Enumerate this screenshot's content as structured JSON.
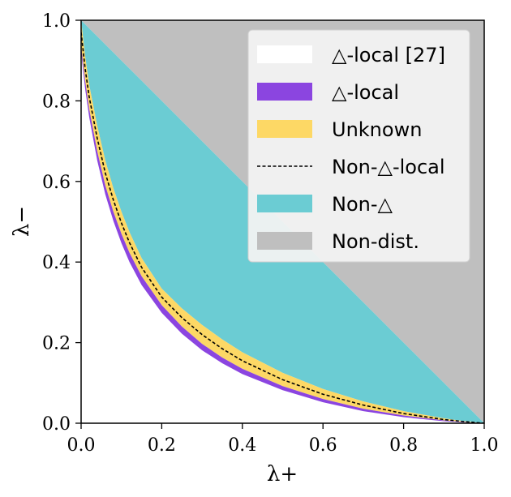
{
  "chart_data": {
    "type": "area",
    "xlabel": "λ+",
    "ylabel": "λ−",
    "xlim": [
      0.0,
      1.0
    ],
    "ylim": [
      0.0,
      1.0
    ],
    "xticks": [
      "0.0",
      "0.2",
      "0.4",
      "0.6",
      "0.8",
      "1.0"
    ],
    "yticks": [
      "0.0",
      "0.2",
      "0.4",
      "0.6",
      "0.8",
      "1.0"
    ],
    "grid": false,
    "legend_position": "top-right",
    "x": [
      0.0,
      0.01,
      0.02,
      0.04,
      0.06,
      0.08,
      0.1,
      0.12,
      0.15,
      0.2,
      0.25,
      0.3,
      0.35,
      0.4,
      0.5,
      0.6,
      0.7,
      0.8,
      0.9,
      0.95,
      1.0
    ],
    "series": [
      {
        "name": "△-local [27]",
        "color": "#ffffff",
        "kind": "band",
        "lower": [
          1.0,
          1.0,
          1.0,
          1.0,
          1.0,
          1.0,
          1.0,
          1.0,
          1.0,
          1.0,
          1.0,
          1.0,
          1.0,
          1.0,
          1.0,
          1.0,
          1.0,
          1.0,
          1.0,
          1.0,
          1.0
        ],
        "upper": [
          1.0,
          1.0,
          1.0,
          1.0,
          1.0,
          1.0,
          1.0,
          1.0,
          1.0,
          1.0,
          1.0,
          1.0,
          1.0,
          1.0,
          1.0,
          1.0,
          1.0,
          1.0,
          1.0,
          1.0,
          1.0
        ]
      },
      {
        "name": "△-local",
        "color": "#8b45e0",
        "kind": "band",
        "lower": [
          0.92,
          0.83,
          0.76,
          0.652,
          0.568,
          0.502,
          0.447,
          0.4,
          0.343,
          0.274,
          0.222,
          0.181,
          0.149,
          0.122,
          0.082,
          0.052,
          0.03,
          0.015,
          0.005,
          0.002,
          0.0
        ],
        "upper": [
          0.935,
          0.85,
          0.78,
          0.675,
          0.59,
          0.525,
          0.47,
          0.423,
          0.365,
          0.293,
          0.24,
          0.197,
          0.163,
          0.135,
          0.092,
          0.06,
          0.036,
          0.019,
          0.007,
          0.003,
          0.0
        ]
      },
      {
        "name": "Unknown",
        "color": "#fdd865",
        "kind": "band",
        "lower": [
          0.935,
          0.85,
          0.78,
          0.675,
          0.59,
          0.525,
          0.47,
          0.423,
          0.365,
          0.293,
          0.24,
          0.197,
          0.163,
          0.135,
          0.092,
          0.06,
          0.036,
          0.019,
          0.007,
          0.003,
          0.0
        ],
        "upper": [
          1.0,
          0.91,
          0.84,
          0.738,
          0.652,
          0.583,
          0.525,
          0.474,
          0.41,
          0.334,
          0.285,
          0.244,
          0.208,
          0.176,
          0.125,
          0.085,
          0.054,
          0.03,
          0.012,
          0.005,
          0.0
        ]
      },
      {
        "name": "Non-△-local",
        "color": "#000000",
        "kind": "dashed-line",
        "values": [
          0.97,
          0.88,
          0.81,
          0.707,
          0.621,
          0.554,
          0.497,
          0.448,
          0.387,
          0.313,
          0.262,
          0.22,
          0.185,
          0.155,
          0.108,
          0.072,
          0.045,
          0.024,
          0.009,
          0.004,
          0.0
        ]
      },
      {
        "name": "Non-△",
        "color": "#6bccd3",
        "kind": "band",
        "lower": [
          1.0,
          0.91,
          0.84,
          0.738,
          0.652,
          0.583,
          0.525,
          0.474,
          0.41,
          0.334,
          0.285,
          0.244,
          0.208,
          0.176,
          0.125,
          0.085,
          0.054,
          0.03,
          0.012,
          0.005,
          0.0
        ],
        "upper": [
          1.0,
          0.99,
          0.98,
          0.96,
          0.94,
          0.92,
          0.9,
          0.88,
          0.85,
          0.8,
          0.75,
          0.7,
          0.65,
          0.6,
          0.5,
          0.4,
          0.3,
          0.2,
          0.1,
          0.05,
          0.0
        ]
      },
      {
        "name": "Non-dist.",
        "color": "#bfbfbf",
        "kind": "band",
        "lower": [
          1.0,
          0.99,
          0.98,
          0.96,
          0.94,
          0.92,
          0.9,
          0.88,
          0.85,
          0.8,
          0.75,
          0.7,
          0.65,
          0.6,
          0.5,
          0.4,
          0.3,
          0.2,
          0.1,
          0.05,
          0.0
        ],
        "upper": [
          1.0,
          1.0,
          1.0,
          1.0,
          1.0,
          1.0,
          1.0,
          1.0,
          1.0,
          1.0,
          1.0,
          1.0,
          1.0,
          1.0,
          1.0,
          1.0,
          1.0,
          1.0,
          1.0,
          1.0,
          1.0
        ]
      }
    ]
  }
}
